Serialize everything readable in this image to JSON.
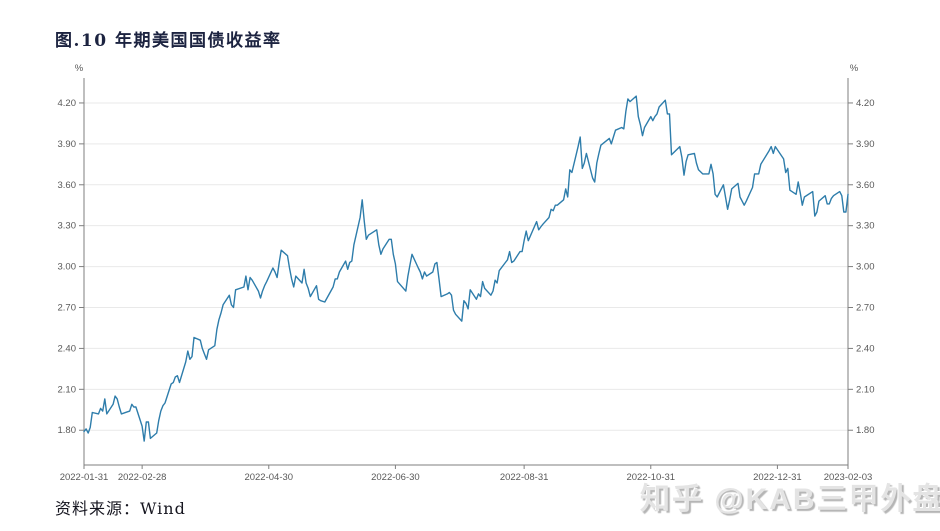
{
  "page": {
    "title": "图.10 年期美国国债收益率",
    "source_label": "资料来源：Wind",
    "watermark": "知乎 @KAB三甲外盘"
  },
  "chart_data": {
    "type": "line",
    "title": "图.10 年期美国国债收益率",
    "series_name": "10年期美国国债收益率",
    "y_axis_unit": "%",
    "grid": "horizontal",
    "legend": "none",
    "line_color": "#2e7dab",
    "axis_color": "#7f7f7f",
    "grid_color": "#e9e9e9",
    "label_color": "#595959",
    "ylim": [
      1.545,
      4.383
    ],
    "y_ticks": [
      1.8,
      2.1,
      2.4,
      2.7,
      3.0,
      3.3,
      3.6,
      3.9,
      4.2
    ],
    "xlim": [
      "2022-01-31",
      "2023-02-03"
    ],
    "x_tick_labels": [
      "2022-01-31",
      "2022-02-28",
      "2022-04-30",
      "2022-06-30",
      "2022-08-31",
      "2022-10-31",
      "2022-12-31",
      "2023-02-03"
    ],
    "points": [
      [
        "2022-01-31",
        1.79
      ],
      [
        "2022-02-01",
        1.81
      ],
      [
        "2022-02-02",
        1.78
      ],
      [
        "2022-02-03",
        1.82
      ],
      [
        "2022-02-04",
        1.93
      ],
      [
        "2022-02-07",
        1.92
      ],
      [
        "2022-02-08",
        1.96
      ],
      [
        "2022-02-09",
        1.94
      ],
      [
        "2022-02-10",
        2.03
      ],
      [
        "2022-02-11",
        1.92
      ],
      [
        "2022-02-14",
        1.99
      ],
      [
        "2022-02-15",
        2.05
      ],
      [
        "2022-02-16",
        2.03
      ],
      [
        "2022-02-17",
        1.97
      ],
      [
        "2022-02-18",
        1.92
      ],
      [
        "2022-02-22",
        1.94
      ],
      [
        "2022-02-23",
        1.99
      ],
      [
        "2022-02-24",
        1.97
      ],
      [
        "2022-02-25",
        1.97
      ],
      [
        "2022-02-28",
        1.83
      ],
      [
        "2022-03-01",
        1.72
      ],
      [
        "2022-03-02",
        1.86
      ],
      [
        "2022-03-03",
        1.86
      ],
      [
        "2022-03-04",
        1.74
      ],
      [
        "2022-03-07",
        1.78
      ],
      [
        "2022-03-08",
        1.87
      ],
      [
        "2022-03-09",
        1.94
      ],
      [
        "2022-03-10",
        1.98
      ],
      [
        "2022-03-11",
        2.0
      ],
      [
        "2022-03-14",
        2.14
      ],
      [
        "2022-03-15",
        2.15
      ],
      [
        "2022-03-16",
        2.19
      ],
      [
        "2022-03-17",
        2.2
      ],
      [
        "2022-03-18",
        2.15
      ],
      [
        "2022-03-21",
        2.3
      ],
      [
        "2022-03-22",
        2.38
      ],
      [
        "2022-03-23",
        2.32
      ],
      [
        "2022-03-24",
        2.34
      ],
      [
        "2022-03-25",
        2.48
      ],
      [
        "2022-03-28",
        2.46
      ],
      [
        "2022-03-29",
        2.4
      ],
      [
        "2022-03-30",
        2.36
      ],
      [
        "2022-03-31",
        2.32
      ],
      [
        "2022-04-01",
        2.39
      ],
      [
        "2022-04-04",
        2.42
      ],
      [
        "2022-04-05",
        2.54
      ],
      [
        "2022-04-06",
        2.61
      ],
      [
        "2022-04-07",
        2.66
      ],
      [
        "2022-04-08",
        2.72
      ],
      [
        "2022-04-11",
        2.79
      ],
      [
        "2022-04-12",
        2.72
      ],
      [
        "2022-04-13",
        2.7
      ],
      [
        "2022-04-14",
        2.83
      ],
      [
        "2022-04-18",
        2.85
      ],
      [
        "2022-04-19",
        2.93
      ],
      [
        "2022-04-20",
        2.83
      ],
      [
        "2022-04-21",
        2.92
      ],
      [
        "2022-04-22",
        2.9
      ],
      [
        "2022-04-25",
        2.82
      ],
      [
        "2022-04-26",
        2.77
      ],
      [
        "2022-04-27",
        2.82
      ],
      [
        "2022-04-28",
        2.86
      ],
      [
        "2022-04-29",
        2.89
      ],
      [
        "2022-05-02",
        2.99
      ],
      [
        "2022-05-03",
        2.96
      ],
      [
        "2022-05-04",
        2.92
      ],
      [
        "2022-05-05",
        3.03
      ],
      [
        "2022-05-06",
        3.12
      ],
      [
        "2022-05-09",
        3.08
      ],
      [
        "2022-05-10",
        2.99
      ],
      [
        "2022-05-11",
        2.91
      ],
      [
        "2022-05-12",
        2.85
      ],
      [
        "2022-05-13",
        2.93
      ],
      [
        "2022-05-16",
        2.88
      ],
      [
        "2022-05-17",
        2.98
      ],
      [
        "2022-05-18",
        2.88
      ],
      [
        "2022-05-19",
        2.84
      ],
      [
        "2022-05-20",
        2.78
      ],
      [
        "2022-05-23",
        2.86
      ],
      [
        "2022-05-24",
        2.76
      ],
      [
        "2022-05-25",
        2.75
      ],
      [
        "2022-05-27",
        2.74
      ],
      [
        "2022-05-31",
        2.85
      ],
      [
        "2022-06-01",
        2.91
      ],
      [
        "2022-06-02",
        2.91
      ],
      [
        "2022-06-03",
        2.96
      ],
      [
        "2022-06-06",
        3.04
      ],
      [
        "2022-06-07",
        2.98
      ],
      [
        "2022-06-08",
        3.03
      ],
      [
        "2022-06-09",
        3.04
      ],
      [
        "2022-06-10",
        3.16
      ],
      [
        "2022-06-13",
        3.36
      ],
      [
        "2022-06-14",
        3.49
      ],
      [
        "2022-06-15",
        3.33
      ],
      [
        "2022-06-16",
        3.2
      ],
      [
        "2022-06-17",
        3.23
      ],
      [
        "2022-06-21",
        3.27
      ],
      [
        "2022-06-22",
        3.16
      ],
      [
        "2022-06-23",
        3.09
      ],
      [
        "2022-06-24",
        3.13
      ],
      [
        "2022-06-27",
        3.2
      ],
      [
        "2022-06-28",
        3.2
      ],
      [
        "2022-06-29",
        3.09
      ],
      [
        "2022-06-30",
        3.02
      ],
      [
        "2022-07-01",
        2.89
      ],
      [
        "2022-07-05",
        2.82
      ],
      [
        "2022-07-06",
        2.93
      ],
      [
        "2022-07-07",
        3.01
      ],
      [
        "2022-07-08",
        3.09
      ],
      [
        "2022-07-11",
        2.99
      ],
      [
        "2022-07-12",
        2.96
      ],
      [
        "2022-07-13",
        2.91
      ],
      [
        "2022-07-14",
        2.96
      ],
      [
        "2022-07-15",
        2.93
      ],
      [
        "2022-07-18",
        2.96
      ],
      [
        "2022-07-19",
        3.02
      ],
      [
        "2022-07-20",
        3.03
      ],
      [
        "2022-07-21",
        2.91
      ],
      [
        "2022-07-22",
        2.78
      ],
      [
        "2022-07-25",
        2.8
      ],
      [
        "2022-07-26",
        2.81
      ],
      [
        "2022-07-27",
        2.79
      ],
      [
        "2022-07-28",
        2.68
      ],
      [
        "2022-07-29",
        2.65
      ],
      [
        "2022-08-01",
        2.6
      ],
      [
        "2022-08-02",
        2.75
      ],
      [
        "2022-08-03",
        2.73
      ],
      [
        "2022-08-04",
        2.69
      ],
      [
        "2022-08-05",
        2.83
      ],
      [
        "2022-08-08",
        2.76
      ],
      [
        "2022-08-09",
        2.8
      ],
      [
        "2022-08-10",
        2.78
      ],
      [
        "2022-08-11",
        2.89
      ],
      [
        "2022-08-12",
        2.84
      ],
      [
        "2022-08-15",
        2.79
      ],
      [
        "2022-08-16",
        2.82
      ],
      [
        "2022-08-17",
        2.9
      ],
      [
        "2022-08-18",
        2.88
      ],
      [
        "2022-08-19",
        2.97
      ],
      [
        "2022-08-22",
        3.03
      ],
      [
        "2022-08-23",
        3.05
      ],
      [
        "2022-08-24",
        3.11
      ],
      [
        "2022-08-25",
        3.03
      ],
      [
        "2022-08-26",
        3.04
      ],
      [
        "2022-08-29",
        3.11
      ],
      [
        "2022-08-30",
        3.11
      ],
      [
        "2022-08-31",
        3.19
      ],
      [
        "2022-09-01",
        3.26
      ],
      [
        "2022-09-02",
        3.19
      ],
      [
        "2022-09-06",
        3.33
      ],
      [
        "2022-09-07",
        3.27
      ],
      [
        "2022-09-08",
        3.29
      ],
      [
        "2022-09-09",
        3.31
      ],
      [
        "2022-09-12",
        3.36
      ],
      [
        "2022-09-13",
        3.42
      ],
      [
        "2022-09-14",
        3.41
      ],
      [
        "2022-09-15",
        3.45
      ],
      [
        "2022-09-16",
        3.45
      ],
      [
        "2022-09-19",
        3.49
      ],
      [
        "2022-09-20",
        3.57
      ],
      [
        "2022-09-21",
        3.51
      ],
      [
        "2022-09-22",
        3.71
      ],
      [
        "2022-09-23",
        3.69
      ],
      [
        "2022-09-26",
        3.88
      ],
      [
        "2022-09-27",
        3.95
      ],
      [
        "2022-09-28",
        3.72
      ],
      [
        "2022-09-29",
        3.76
      ],
      [
        "2022-09-30",
        3.83
      ],
      [
        "2022-10-03",
        3.65
      ],
      [
        "2022-10-04",
        3.62
      ],
      [
        "2022-10-05",
        3.76
      ],
      [
        "2022-10-06",
        3.83
      ],
      [
        "2022-10-07",
        3.89
      ],
      [
        "2022-10-11",
        3.94
      ],
      [
        "2022-10-12",
        3.9
      ],
      [
        "2022-10-13",
        3.95
      ],
      [
        "2022-10-14",
        4.0
      ],
      [
        "2022-10-17",
        4.02
      ],
      [
        "2022-10-18",
        4.01
      ],
      [
        "2022-10-19",
        4.14
      ],
      [
        "2022-10-20",
        4.23
      ],
      [
        "2022-10-21",
        4.21
      ],
      [
        "2022-10-24",
        4.25
      ],
      [
        "2022-10-25",
        4.1
      ],
      [
        "2022-10-26",
        4.04
      ],
      [
        "2022-10-27",
        3.96
      ],
      [
        "2022-10-28",
        4.02
      ],
      [
        "2022-10-31",
        4.1
      ],
      [
        "2022-11-01",
        4.07
      ],
      [
        "2022-11-02",
        4.1
      ],
      [
        "2022-11-03",
        4.12
      ],
      [
        "2022-11-04",
        4.17
      ],
      [
        "2022-11-07",
        4.22
      ],
      [
        "2022-11-08",
        4.12
      ],
      [
        "2022-11-09",
        4.12
      ],
      [
        "2022-11-10",
        3.82
      ],
      [
        "2022-11-14",
        3.88
      ],
      [
        "2022-11-15",
        3.8
      ],
      [
        "2022-11-16",
        3.67
      ],
      [
        "2022-11-17",
        3.77
      ],
      [
        "2022-11-18",
        3.82
      ],
      [
        "2022-11-21",
        3.83
      ],
      [
        "2022-11-22",
        3.76
      ],
      [
        "2022-11-23",
        3.71
      ],
      [
        "2022-11-25",
        3.68
      ],
      [
        "2022-11-28",
        3.68
      ],
      [
        "2022-11-29",
        3.75
      ],
      [
        "2022-11-30",
        3.68
      ],
      [
        "2022-12-01",
        3.53
      ],
      [
        "2022-12-02",
        3.51
      ],
      [
        "2022-12-05",
        3.6
      ],
      [
        "2022-12-06",
        3.51
      ],
      [
        "2022-12-07",
        3.42
      ],
      [
        "2022-12-08",
        3.49
      ],
      [
        "2022-12-09",
        3.57
      ],
      [
        "2022-12-12",
        3.61
      ],
      [
        "2022-12-13",
        3.51
      ],
      [
        "2022-12-14",
        3.48
      ],
      [
        "2022-12-15",
        3.45
      ],
      [
        "2022-12-16",
        3.48
      ],
      [
        "2022-12-19",
        3.58
      ],
      [
        "2022-12-20",
        3.68
      ],
      [
        "2022-12-21",
        3.68
      ],
      [
        "2022-12-22",
        3.68
      ],
      [
        "2022-12-23",
        3.75
      ],
      [
        "2022-12-27",
        3.85
      ],
      [
        "2022-12-28",
        3.88
      ],
      [
        "2022-12-29",
        3.83
      ],
      [
        "2022-12-30",
        3.88
      ],
      [
        "2023-01-03",
        3.79
      ],
      [
        "2023-01-04",
        3.69
      ],
      [
        "2023-01-05",
        3.72
      ],
      [
        "2023-01-06",
        3.56
      ],
      [
        "2023-01-09",
        3.53
      ],
      [
        "2023-01-10",
        3.62
      ],
      [
        "2023-01-11",
        3.54
      ],
      [
        "2023-01-12",
        3.45
      ],
      [
        "2023-01-13",
        3.51
      ],
      [
        "2023-01-17",
        3.55
      ],
      [
        "2023-01-18",
        3.37
      ],
      [
        "2023-01-19",
        3.4
      ],
      [
        "2023-01-20",
        3.48
      ],
      [
        "2023-01-23",
        3.52
      ],
      [
        "2023-01-24",
        3.46
      ],
      [
        "2023-01-25",
        3.46
      ],
      [
        "2023-01-26",
        3.5
      ],
      [
        "2023-01-27",
        3.52
      ],
      [
        "2023-01-30",
        3.55
      ],
      [
        "2023-01-31",
        3.52
      ],
      [
        "2023-02-01",
        3.4
      ],
      [
        "2023-02-02",
        3.4
      ],
      [
        "2023-02-03",
        3.53
      ]
    ]
  }
}
